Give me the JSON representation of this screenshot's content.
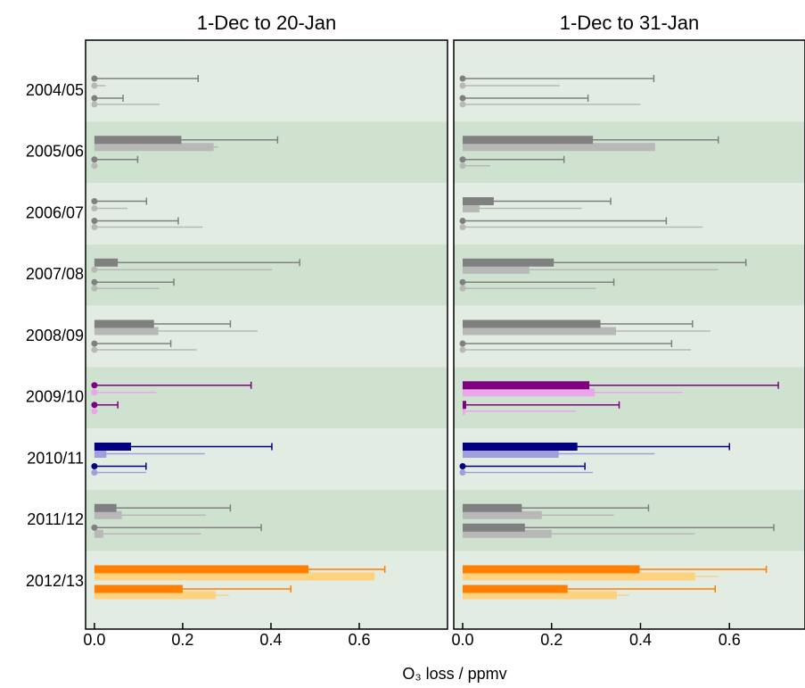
{
  "chart_data": [
    {
      "type": "bar",
      "title": "1-Dec to 20-Jan",
      "xlabel": "O₃ loss / ppmv",
      "categories": [
        "2004/05",
        "2005/06",
        "2006/07",
        "2007/08",
        "2008/09",
        "2009/10",
        "2010/11",
        "2011/12",
        "2012/13"
      ],
      "xlim": [
        -0.02,
        0.8
      ],
      "xticks": [
        {
          "value": 0,
          "label": "0.0"
        },
        0.2,
        0.4,
        0.6
      ],
      "band_colors": [
        "#e3ece3",
        "#cfe1cf"
      ],
      "series": [
        {
          "values": [
            0,
            0.197,
            0,
            0.053,
            0.135,
            0,
            0.083,
            0.05,
            0.485
          ],
          "upper": [
            0.235,
            0.415,
            0.118,
            0.465,
            0.308,
            0.355,
            0.402,
            0.308,
            0.658
          ],
          "colors": [
            "#808080",
            "#808080",
            "#808080",
            "#808080",
            "#808080",
            "#800080",
            "#000080",
            "#808080",
            "#ff7f00"
          ]
        },
        {
          "values": [
            0,
            0.27,
            0,
            0,
            0.145,
            0,
            0.027,
            0.062,
            0.635
          ],
          "upper": [
            0.025,
            0.28,
            0.075,
            0.403,
            0.37,
            0.14,
            0.25,
            0.252,
            0.6
          ],
          "colors": [
            "#b8b8b8",
            "#b8b8b8",
            "#b8b8b8",
            "#b8b8b8",
            "#b8b8b8",
            "#e9a6e9",
            "#9f9fdc",
            "#b8b8b8",
            "#ffd27f"
          ]
        },
        {
          "values": [
            0,
            0,
            0,
            0,
            0,
            0,
            0,
            0,
            0.2
          ],
          "upper": [
            0.065,
            0.098,
            0.19,
            0.18,
            0.173,
            0.053,
            0.117,
            0.378,
            0.445
          ],
          "colors": [
            "#808080",
            "#808080",
            "#808080",
            "#808080",
            "#808080",
            "#800080",
            "#000080",
            "#808080",
            "#ff7f00"
          ]
        },
        {
          "values": [
            0,
            0,
            0,
            0,
            0,
            0,
            0,
            0.02,
            0.275
          ],
          "upper": [
            0.148,
            0,
            0.245,
            0.147,
            0.232,
            0,
            0.117,
            0.242,
            0.305
          ],
          "colors": [
            "#b8b8b8",
            "#b8b8b8",
            "#b8b8b8",
            "#b8b8b8",
            "#b8b8b8",
            "#e9a6e9",
            "#9f9fdc",
            "#b8b8b8",
            "#ffd27f"
          ]
        }
      ]
    },
    {
      "type": "bar",
      "title": "1-Dec to 31-Jan",
      "xlim": [
        -0.02,
        0.77
      ],
      "xticks": [
        {
          "value": 0,
          "label": "0.0"
        },
        0.2,
        0.4,
        0.6
      ],
      "band_colors": [
        "#e3ece3",
        "#cfe1cf"
      ],
      "series": [
        {
          "values": [
            0,
            0.293,
            0.07,
            0.205,
            0.31,
            0.285,
            0.258,
            0.133,
            0.398
          ],
          "upper": [
            0.43,
            0.575,
            0.333,
            0.637,
            0.517,
            0.71,
            0.6,
            0.418,
            0.683
          ],
          "colors": [
            "#808080",
            "#808080",
            "#808080",
            "#808080",
            "#808080",
            "#800080",
            "#000080",
            "#808080",
            "#ff7f00"
          ]
        },
        {
          "values": [
            0,
            0.433,
            0.038,
            0.15,
            0.345,
            0.297,
            0.216,
            0.178,
            0.523
          ],
          "upper": [
            0.218,
            0.42,
            0.268,
            0.575,
            0.557,
            0.495,
            0.432,
            0.34,
            0.575
          ],
          "colors": [
            "#b8b8b8",
            "#b8b8b8",
            "#b8b8b8",
            "#b8b8b8",
            "#b8b8b8",
            "#e9a6e9",
            "#9f9fdc",
            "#b8b8b8",
            "#ffd27f"
          ]
        },
        {
          "values": [
            0,
            0,
            0,
            0,
            0,
            0.008,
            0,
            0.14,
            0.236
          ],
          "upper": [
            0.282,
            0.228,
            0.458,
            0.34,
            0.47,
            0.352,
            0.275,
            0.7,
            0.568
          ],
          "colors": [
            "#808080",
            "#808080",
            "#808080",
            "#808080",
            "#808080",
            "#800080",
            "#000080",
            "#808080",
            "#ff7f00"
          ]
        },
        {
          "values": [
            0,
            0,
            0,
            0,
            0,
            0.005,
            0,
            0.2,
            0.347
          ],
          "upper": [
            0.4,
            0.062,
            0.54,
            0.3,
            0.513,
            0.255,
            0.293,
            0.522,
            0.375
          ],
          "colors": [
            "#b8b8b8",
            "#b8b8b8",
            "#b8b8b8",
            "#b8b8b8",
            "#b8b8b8",
            "#e9a6e9",
            "#9f9fdc",
            "#b8b8b8",
            "#ffd27f"
          ]
        }
      ]
    }
  ]
}
